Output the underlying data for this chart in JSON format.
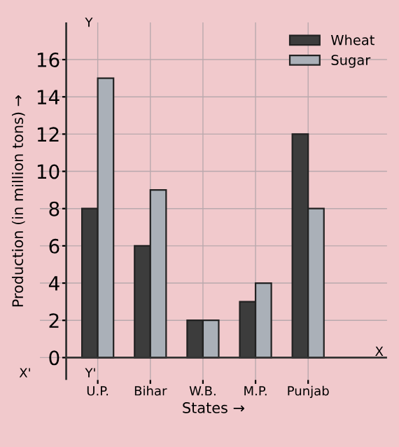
{
  "chart_data": {
    "type": "bar",
    "xlabel": "States →",
    "ylabel": "Production (in million tons) →",
    "categories": [
      "U.P.",
      "Bihar",
      "W.B.",
      "M.P.",
      "Punjab"
    ],
    "series": [
      {
        "name": "Wheat",
        "color": "#3c3c3c",
        "values": [
          8,
          6,
          2,
          3,
          12
        ]
      },
      {
        "name": "Sugar",
        "color": "#aab0b8",
        "values": [
          15,
          9,
          2,
          4,
          8
        ]
      }
    ],
    "ylim": [
      -1.2,
      18
    ],
    "yticks": [
      0,
      2,
      4,
      6,
      8,
      10,
      12,
      14,
      16
    ],
    "grid": true,
    "legend": "top right",
    "annotations": [
      "X'",
      "X",
      "Y",
      "Y'"
    ]
  }
}
